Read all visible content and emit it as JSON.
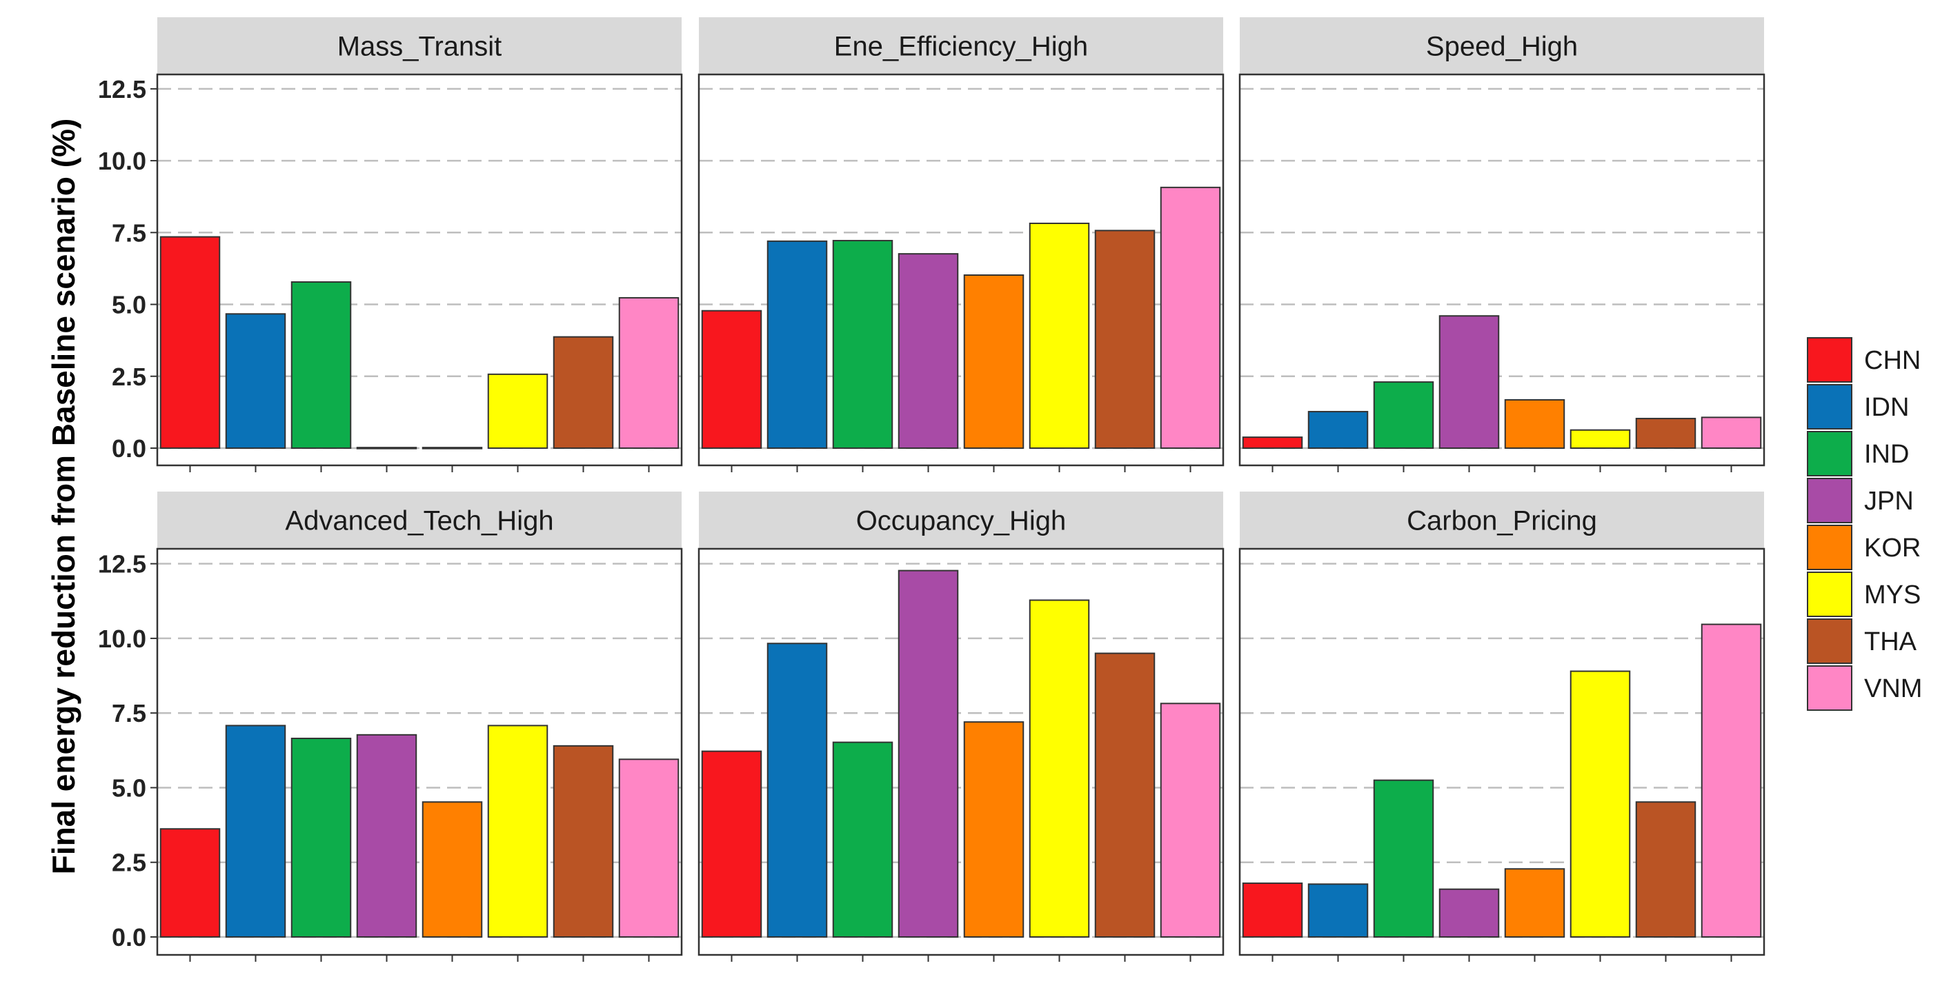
{
  "chart_data": {
    "type": "bar",
    "layout": "faceted 2x3",
    "ylabel": "Final energy reduction from Baseline scenario (%)",
    "xlabel": "",
    "ylim": [
      -0.6,
      13.0
    ],
    "yticks": [
      0.0,
      2.5,
      5.0,
      7.5,
      10.0,
      12.5
    ],
    "ytick_labels": [
      "0.0",
      "2.5",
      "5.0",
      "7.5",
      "10.0",
      "12.5"
    ],
    "grid": "dashed horizontal",
    "categories": [
      "CHN",
      "IDN",
      "IND",
      "JPN",
      "KOR",
      "MYS",
      "THA",
      "VNM"
    ],
    "colors": {
      "CHN": "#F8171E",
      "IDN": "#0A72B7",
      "IND": "#0DAD4B",
      "JPN": "#A84BA6",
      "KOR": "#FF8000",
      "MYS": "#FFFF00",
      "THA": "#BA5424",
      "VNM": "#FF86C5"
    },
    "panels": [
      {
        "title": "Mass_Transit",
        "values": [
          7.35,
          4.67,
          5.78,
          0.02,
          0.02,
          2.57,
          3.87,
          5.23
        ]
      },
      {
        "title": "Ene_Efficiency_High",
        "values": [
          4.78,
          7.2,
          7.22,
          6.76,
          6.02,
          7.82,
          7.57,
          9.07
        ]
      },
      {
        "title": "Speed_High",
        "values": [
          0.38,
          1.27,
          2.3,
          4.6,
          1.68,
          0.63,
          1.03,
          1.07
        ]
      },
      {
        "title": "Advanced_Tech_High",
        "values": [
          3.62,
          7.08,
          6.65,
          6.77,
          4.52,
          7.08,
          6.4,
          5.95
        ]
      },
      {
        "title": "Occupancy_High",
        "values": [
          6.22,
          9.83,
          6.52,
          12.27,
          7.2,
          11.28,
          9.5,
          7.82
        ]
      },
      {
        "title": "Carbon_Pricing",
        "values": [
          1.8,
          1.77,
          5.25,
          1.6,
          2.28,
          8.9,
          4.52,
          10.47
        ]
      }
    ],
    "legend": {
      "position": "right",
      "items": [
        "CHN",
        "IDN",
        "IND",
        "JPN",
        "KOR",
        "MYS",
        "THA",
        "VNM"
      ]
    }
  }
}
